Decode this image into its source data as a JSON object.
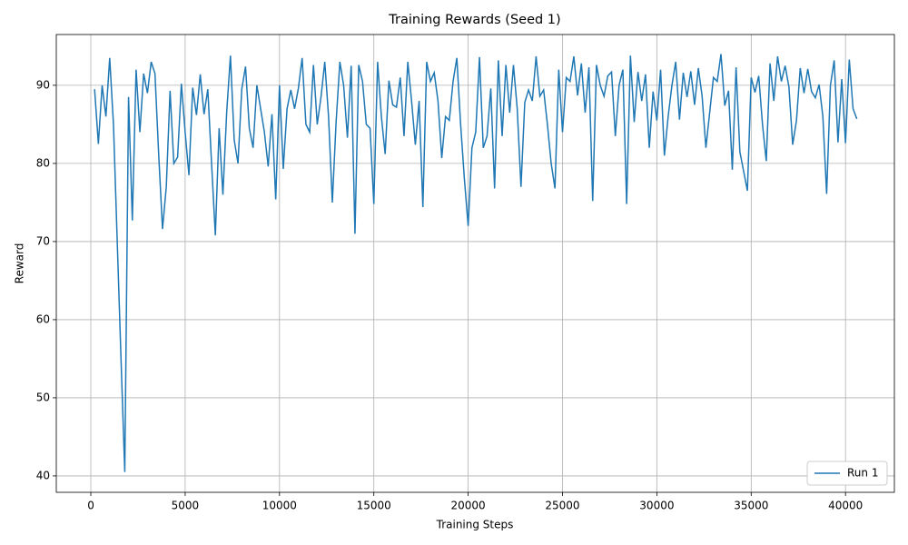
{
  "chart_data": {
    "type": "line",
    "title": "Training Rewards (Seed 1)",
    "x_label": "Training Steps",
    "y_label": "Reward",
    "x": [
      200,
      400,
      600,
      800,
      1000,
      1200,
      1400,
      1600,
      1800,
      2000,
      2200,
      2400,
      2600,
      2800,
      3000,
      3200,
      3400,
      3600,
      3800,
      4000,
      4200,
      4400,
      4600,
      4800,
      5000,
      5200,
      5400,
      5600,
      5800,
      6000,
      6200,
      6400,
      6600,
      6800,
      7000,
      7200,
      7400,
      7600,
      7800,
      8000,
      8200,
      8400,
      8600,
      8800,
      9000,
      9200,
      9400,
      9600,
      9800,
      10000,
      10200,
      10400,
      10600,
      10800,
      11000,
      11200,
      11400,
      11600,
      11800,
      12000,
      12200,
      12400,
      12600,
      12800,
      13000,
      13200,
      13400,
      13600,
      13800,
      14000,
      14200,
      14400,
      14600,
      14800,
      15000,
      15200,
      15400,
      15600,
      15800,
      16000,
      16200,
      16400,
      16600,
      16800,
      17000,
      17200,
      17400,
      17600,
      17800,
      18000,
      18200,
      18400,
      18600,
      18800,
      19000,
      19200,
      19400,
      19600,
      19800,
      20000,
      20200,
      20400,
      20600,
      20800,
      21000,
      21200,
      21400,
      21600,
      21800,
      22000,
      22200,
      22400,
      22600,
      22800,
      23000,
      23200,
      23400,
      23600,
      23800,
      24000,
      24200,
      24400,
      24600,
      24800,
      25000,
      25200,
      25400,
      25600,
      25800,
      26000,
      26200,
      26400,
      26600,
      26800,
      27000,
      27200,
      27400,
      27600,
      27800,
      28000,
      28200,
      28400,
      28600,
      28800,
      29000,
      29200,
      29400,
      29600,
      29800,
      30000,
      30200,
      30400,
      30600,
      30800,
      31000,
      31200,
      31400,
      31600,
      31800,
      32000,
      32200,
      32400,
      32600,
      32800,
      33000,
      33200,
      33400,
      33600,
      33800,
      34000,
      34200,
      34400,
      34600,
      34800,
      35000,
      35200,
      35400,
      35600,
      35800,
      36000,
      36200,
      36400,
      36600,
      36800,
      37000,
      37200,
      37400,
      37600,
      37800,
      38000,
      38200,
      38400,
      38600,
      38800,
      39000,
      39200,
      39400,
      39600,
      39800,
      40000,
      40200,
      40400,
      40600
    ],
    "series": [
      {
        "name": "Run 1",
        "color": "#1f77b4",
        "values": [
          89.5,
          82.5,
          90,
          86,
          93.5,
          85,
          70,
          55,
          40.5,
          88.5,
          72.7,
          92,
          84,
          91.5,
          89,
          93,
          91.5,
          81,
          71.6,
          77,
          89.3,
          80,
          80.8,
          90.2,
          84,
          78.5,
          89.7,
          86.2,
          91.4,
          86.3,
          89.5,
          80,
          70.8,
          84.5,
          76,
          86.5,
          93.8,
          83,
          80,
          89.5,
          92.4,
          84.5,
          82,
          90,
          87,
          84,
          79.6,
          86.3,
          75.4,
          90,
          79.3,
          87,
          89.4,
          87,
          89.6,
          93.5,
          85,
          84,
          92.6,
          85,
          88.5,
          93,
          86,
          75,
          85.3,
          93,
          90,
          83.3,
          92.5,
          71,
          92.6,
          90.5,
          85,
          84.5,
          74.8,
          93,
          86,
          81.2,
          90.6,
          87.5,
          87.2,
          91,
          83.5,
          93,
          88,
          82.4,
          88,
          74.4,
          93,
          90.5,
          91.6,
          88,
          80.7,
          86,
          85.5,
          90.5,
          93.5,
          85,
          78,
          72,
          82,
          84,
          93.6,
          82,
          83.5,
          89.6,
          76.8,
          93.2,
          83.5,
          92.6,
          86.5,
          92.6,
          87,
          77,
          87.8,
          89.4,
          88,
          93.7,
          88.6,
          89.4,
          85,
          80,
          76.8,
          92,
          84,
          91,
          90.5,
          93.7,
          88.7,
          92.8,
          86.5,
          92.3,
          75.2,
          92.6,
          90,
          88.6,
          91.2,
          91.7,
          83.5,
          90,
          92,
          74.8,
          93.8,
          85.3,
          91.7,
          88,
          91.4,
          82,
          89.2,
          85.5,
          92,
          81,
          86,
          90,
          93,
          85.6,
          91.6,
          88.5,
          91.8,
          87.5,
          92.2,
          88.6,
          82,
          86.5,
          91,
          90.5,
          94,
          87.4,
          89.3,
          79.2,
          92.3,
          81.5,
          79,
          76.5,
          91,
          89.1,
          91.2,
          85,
          80.3,
          92.8,
          88,
          93.7,
          90.5,
          92.5,
          89.8,
          82.4,
          85.5,
          92.2,
          89,
          92.1,
          89.2,
          88.4,
          90.1,
          86,
          76.1,
          90,
          93.2,
          82.7,
          90.8,
          82.6,
          93.3,
          87,
          85.7
        ]
      }
    ],
    "xlim": [
      -1830,
      42590
    ],
    "ylim": [
      37.9,
      96.5
    ],
    "xticks": [
      0,
      5000,
      10000,
      15000,
      20000,
      25000,
      30000,
      35000,
      40000
    ],
    "yticks": [
      40,
      50,
      60,
      70,
      80,
      90
    ],
    "grid": true,
    "legend": "lower right"
  }
}
